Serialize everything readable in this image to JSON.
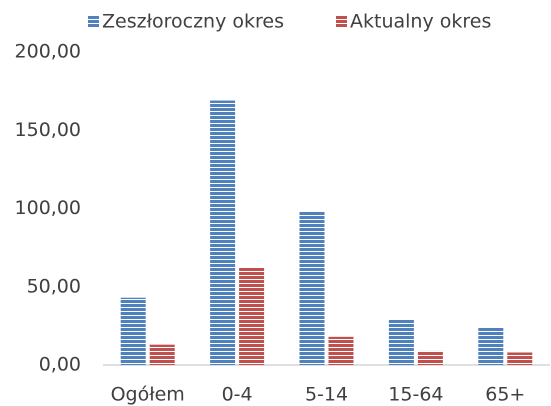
{
  "chart_data": {
    "type": "bar",
    "categories": [
      "Ogółem",
      "0-4",
      "5-14",
      "15-64",
      "65+"
    ],
    "series": [
      {
        "name": "Zeszłoroczny okres",
        "color": "#4f81bd",
        "values": [
          43,
          169,
          98,
          29,
          24
        ]
      },
      {
        "name": "Aktualny okres",
        "color": "#c0504d",
        "values": [
          13,
          62,
          18,
          9,
          8
        ]
      }
    ],
    "ylim": [
      0,
      200
    ],
    "yticks": [
      {
        "value": 0,
        "label": "0,00"
      },
      {
        "value": 50,
        "label": "50,00"
      },
      {
        "value": 100,
        "label": "100,00"
      },
      {
        "value": 150,
        "label": "150,00"
      },
      {
        "value": 200,
        "label": "200,00"
      }
    ],
    "grid": false,
    "legend": "top"
  }
}
